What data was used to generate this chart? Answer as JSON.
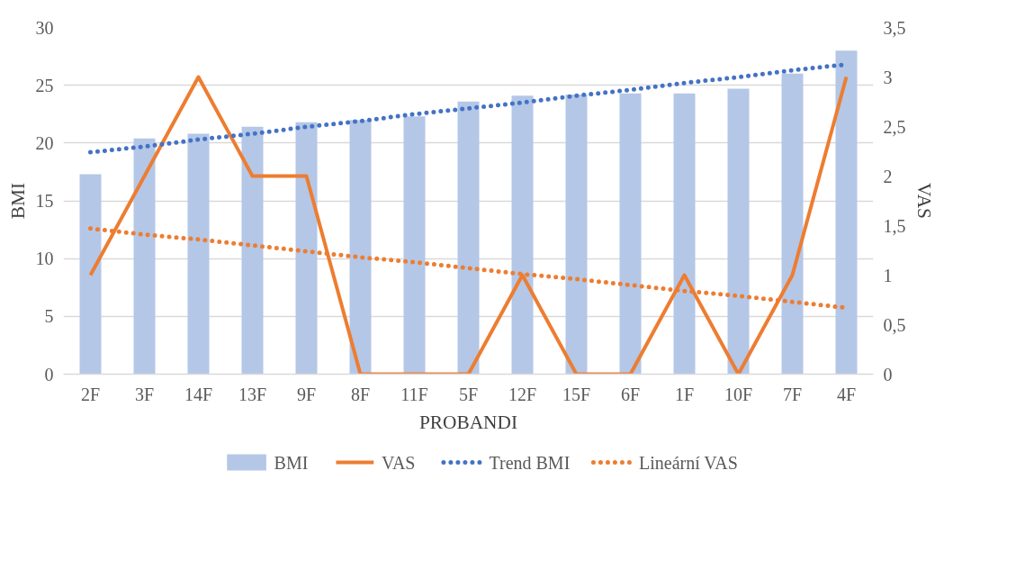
{
  "chart_data": {
    "type": "bar",
    "xlabel": "PROBANDI",
    "ylabel": "BMI",
    "y2label": "VAS",
    "categories": [
      "2F",
      "3F",
      "14F",
      "13F",
      "9F",
      "8F",
      "11F",
      "5F",
      "12F",
      "15F",
      "6F",
      "1F",
      "10F",
      "7F",
      "4F"
    ],
    "series": [
      {
        "name": "BMI",
        "color": "#b4c7e7",
        "values": [
          17.3,
          20.4,
          20.8,
          21.4,
          21.8,
          22.0,
          22.3,
          23.6,
          24.1,
          24.2,
          24.3,
          24.3,
          24.7,
          26.0,
          28.0
        ]
      },
      {
        "name": "VAS",
        "type": "line",
        "axis": "y2",
        "color": "#ed7d31",
        "line_style": "solid",
        "values": [
          1,
          2,
          3,
          2,
          2,
          0,
          0,
          0,
          1,
          0,
          0,
          1,
          0,
          1,
          3
        ]
      },
      {
        "name": "Trend BMI",
        "type": "line",
        "color": "#4472c4",
        "line_style": "dotted",
        "values": [
          19.2,
          19.7,
          20.3,
          20.8,
          21.4,
          21.9,
          22.5,
          23.0,
          23.5,
          24.1,
          24.6,
          25.2,
          25.7,
          26.3,
          26.8
        ]
      },
      {
        "name": "Lineární VAS",
        "type": "line",
        "axis": "y2",
        "color": "#ed7d31",
        "line_style": "dotted",
        "values": [
          1.47,
          1.41,
          1.36,
          1.3,
          1.24,
          1.18,
          1.13,
          1.07,
          1.01,
          0.96,
          0.9,
          0.84,
          0.79,
          0.73,
          0.67
        ]
      }
    ],
    "ylim": [
      0,
      30
    ],
    "yticks": [
      0,
      5,
      10,
      15,
      20,
      25,
      30
    ],
    "y2lim": [
      0,
      3.5
    ],
    "y2ticks": [
      0,
      {
        "value": 0.5,
        "label": "0,5"
      },
      1,
      {
        "value": 1.5,
        "label": "1,5"
      },
      2,
      {
        "value": 2.5,
        "label": "2,5"
      },
      3,
      {
        "value": 3.5,
        "label": "3,5"
      }
    ],
    "grid": "y",
    "legend": "bottom"
  }
}
